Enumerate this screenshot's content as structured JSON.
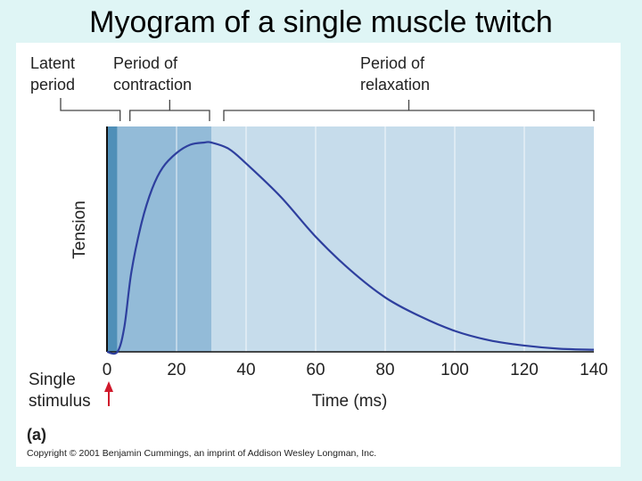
{
  "slide": {
    "title": "Myogram of a single muscle twitch"
  },
  "figure": {
    "panel_label": "(a)",
    "copyright": "Copyright © 2001 Benjamin Cummings, an imprint of Addison Wesley Longman, Inc.",
    "stimulus_label_line1": "Single",
    "stimulus_label_line2": "stimulus"
  },
  "colors": {
    "latent_band": "#4f8fb8",
    "contraction_band": "#93bbd8",
    "relaxation_band": "#c6dceb",
    "curve": "#2e3f9e",
    "stimulus_arrow": "#d0192b"
  },
  "chart_data": {
    "type": "line",
    "title": "Myogram of a single muscle twitch",
    "xlabel": "Time (ms)",
    "ylabel": "Tension",
    "xlim": [
      0,
      140
    ],
    "x_ticks": [
      0,
      20,
      40,
      60,
      80,
      100,
      120,
      140
    ],
    "grid": true,
    "phases": [
      {
        "name_line1": "Latent",
        "name_line2": "period",
        "start": 0,
        "end": 3
      },
      {
        "name_line1": "Period of",
        "name_line2": "contraction",
        "start": 3,
        "end": 30
      },
      {
        "name_line1": "Period of",
        "name_line2": "relaxation",
        "start": 30,
        "end": 140
      }
    ],
    "series": [
      {
        "x": [
          0,
          3,
          5,
          7,
          10,
          13,
          16,
          20,
          24,
          28,
          30,
          35,
          40,
          50,
          60,
          70,
          80,
          90,
          100,
          110,
          120,
          130,
          140
        ],
        "values": [
          0,
          0,
          0.12,
          0.38,
          0.62,
          0.78,
          0.88,
          0.95,
          0.99,
          1.0,
          1.0,
          0.97,
          0.9,
          0.74,
          0.55,
          0.39,
          0.26,
          0.17,
          0.1,
          0.055,
          0.03,
          0.015,
          0.01
        ]
      }
    ]
  }
}
